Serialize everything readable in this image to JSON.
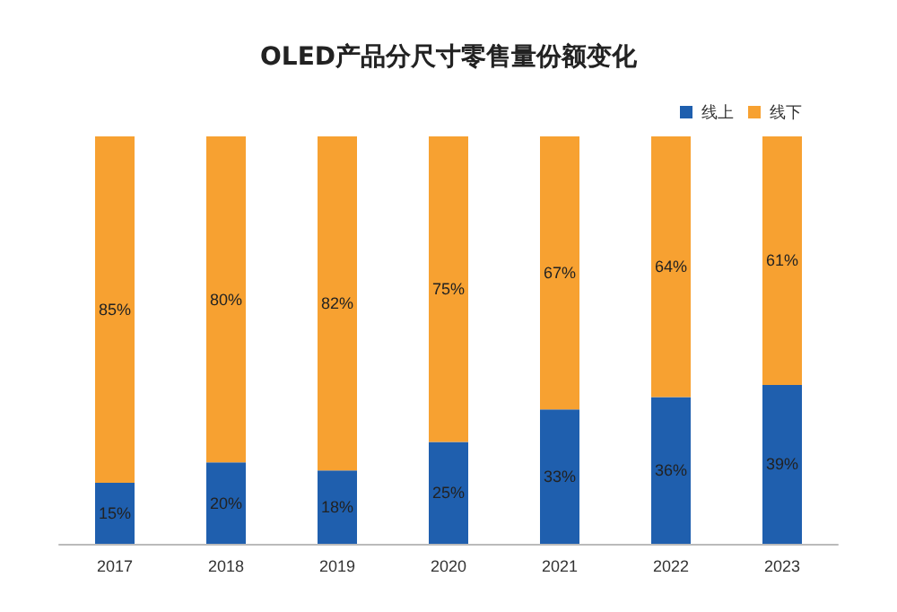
{
  "chart_data": {
    "type": "bar",
    "title": "OLED产品分尺寸零售量份额变化",
    "categories": [
      "2017",
      "2018",
      "2019",
      "2020",
      "2021",
      "2022",
      "2023"
    ],
    "stacked": true,
    "legend": "top right",
    "series": [
      {
        "name": "线上",
        "color": "#1f5fae",
        "values": [
          15,
          20,
          18,
          25,
          33,
          36,
          39
        ],
        "value_labels": [
          "15%",
          "20%",
          "18%",
          "25%",
          "33%",
          "36%",
          "39%"
        ]
      },
      {
        "name": "线下",
        "color": "#f7a131",
        "values": [
          85,
          80,
          82,
          75,
          67,
          64,
          61
        ],
        "value_labels": [
          "85%",
          "80%",
          "82%",
          "75%",
          "67%",
          "64%",
          "61%"
        ]
      }
    ]
  }
}
